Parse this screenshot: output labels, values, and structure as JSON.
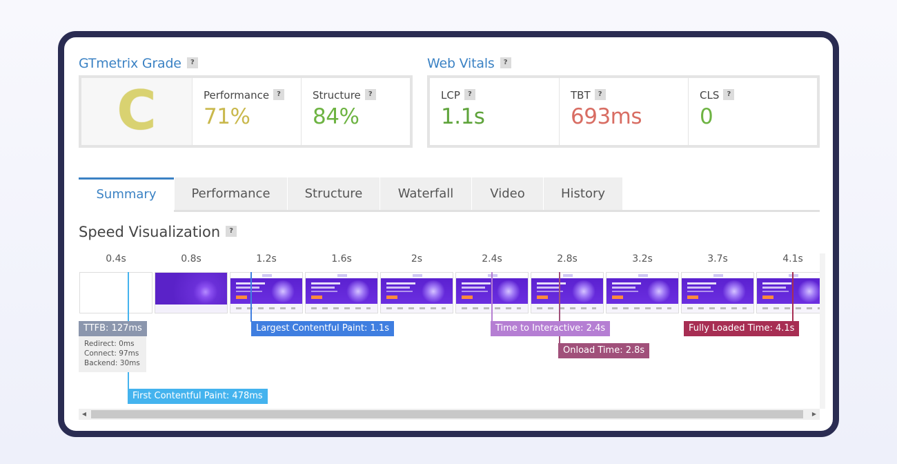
{
  "grade": {
    "title": "GTmetrix Grade",
    "help": "?",
    "letter": "C",
    "performance_label": "Performance",
    "performance_value": "71%",
    "structure_label": "Structure",
    "structure_value": "84%"
  },
  "vitals": {
    "title": "Web Vitals",
    "help": "?",
    "lcp_label": "LCP",
    "lcp_value": "1.1s",
    "tbt_label": "TBT",
    "tbt_value": "693ms",
    "cls_label": "CLS",
    "cls_value": "0"
  },
  "colors": {
    "grade": "#d9d271",
    "performance": "#c9b84c",
    "structure": "#6db342",
    "lcp": "#5ea33a",
    "tbt": "#d86d63",
    "cls": "#6db342",
    "accent": "#3b82c4",
    "ttfb": "#8b96ad",
    "fcp": "#44b3ee",
    "lcp_marker": "#3f7ee0",
    "tti": "#b57ed3",
    "onload": "#a0507a",
    "fully_loaded": "#a72e53"
  },
  "tabs": [
    "Summary",
    "Performance",
    "Structure",
    "Waterfall",
    "Video",
    "History"
  ],
  "active_tab": "Summary",
  "speed": {
    "title": "Speed Visualization",
    "help": "?",
    "ticks": [
      "0.4s",
      "0.8s",
      "1.2s",
      "1.6s",
      "2s",
      "2.4s",
      "2.8s",
      "3.2s",
      "3.7s",
      "4.1s"
    ],
    "markers": {
      "ttfb": "TTFB: 127ms",
      "fcp": "First Contentful Paint: 478ms",
      "lcp": "Largest Contentful Paint: 1.1s",
      "tti": "Time to Interactive: 2.4s",
      "onload": "Onload Time: 2.8s",
      "fully_loaded": "Fully Loaded Time: 4.1s"
    },
    "ttfb_detail": {
      "redirect": "Redirect: 0ms",
      "connect": "Connect: 97ms",
      "backend": "Backend: 30ms"
    }
  },
  "scroll": {
    "left": "◀",
    "right": "▶"
  }
}
